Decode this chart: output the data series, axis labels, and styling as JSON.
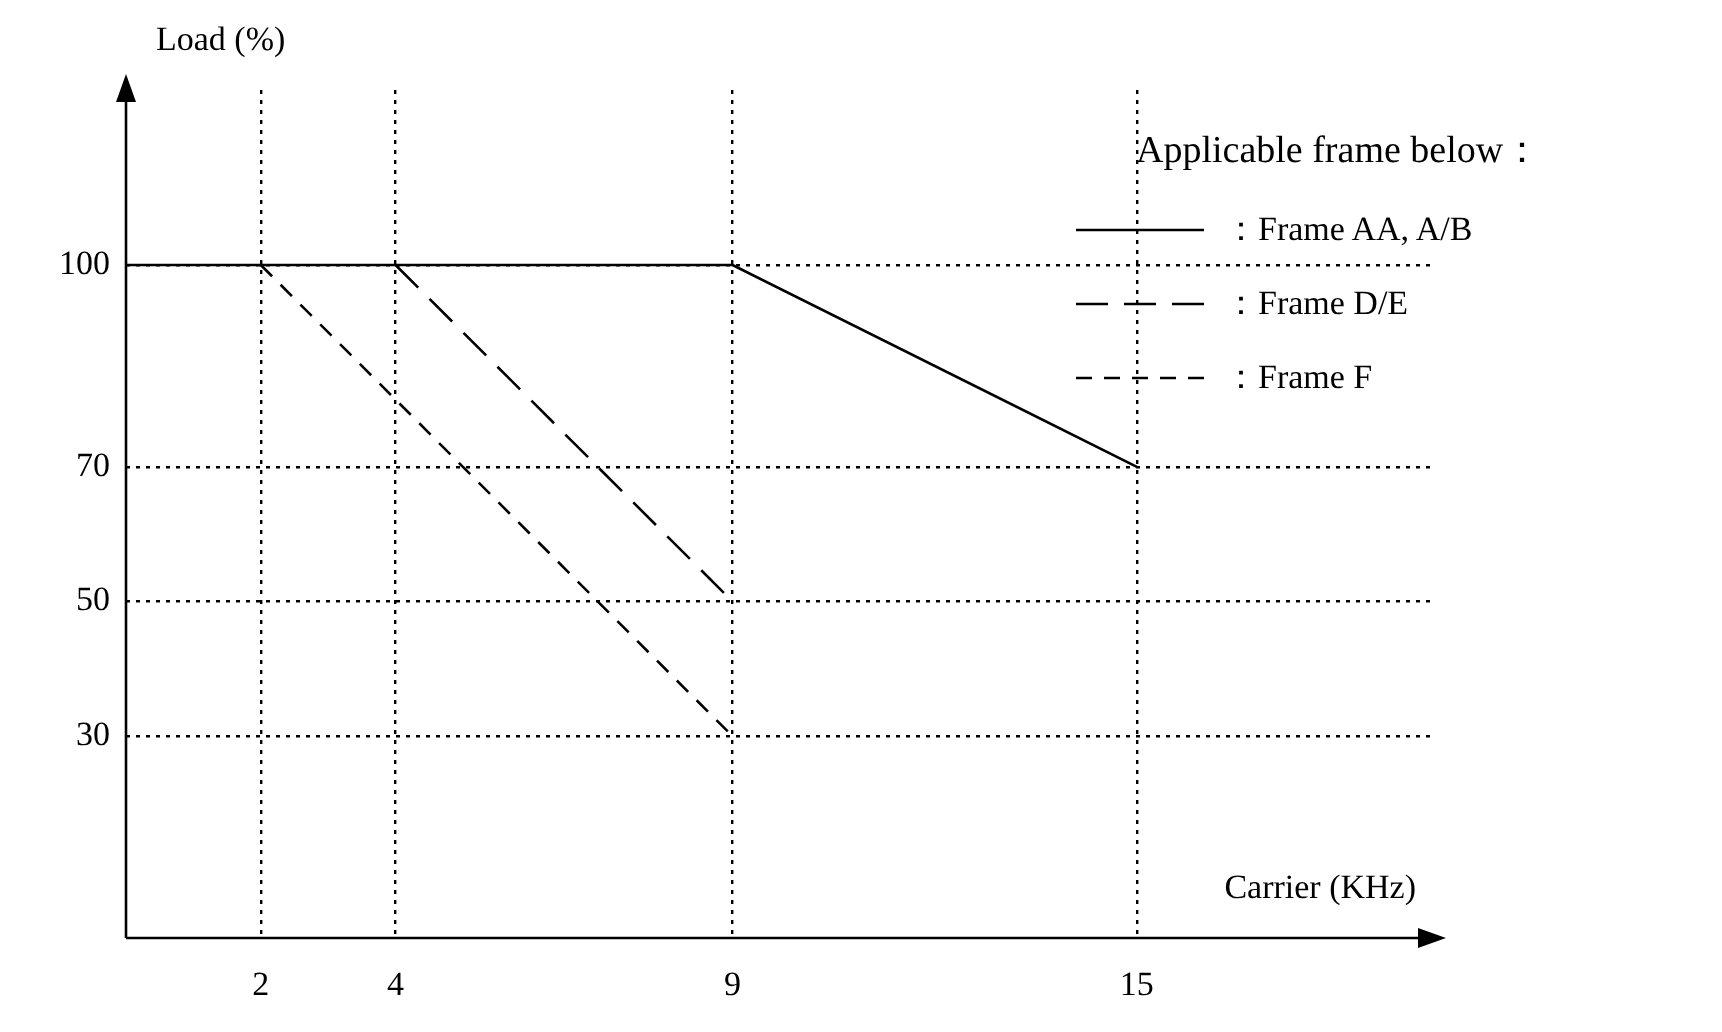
{
  "chart_data": {
    "type": "line",
    "xlabel": "Carrier (KHz)",
    "ylabel": "Load (%)",
    "legend_title": "Applicable frame below：",
    "legend": "top right",
    "grid": true,
    "marker": "none",
    "xlim": [
      0,
      19.35
    ],
    "ylim": [
      0,
      126
    ],
    "xticks": [
      2,
      4,
      9,
      15
    ],
    "yticks": [
      30,
      50,
      70,
      100
    ],
    "series": [
      {
        "name": "：Frame AA, A/B",
        "color": "#000000",
        "line_style": "solid",
        "x": [
          0,
          9,
          15
        ],
        "values": [
          100,
          100,
          70
        ]
      },
      {
        "name": "：Frame D/E",
        "color": "#000000",
        "line_style": "dashed",
        "x": [
          4,
          9
        ],
        "values": [
          100,
          50
        ]
      },
      {
        "name": "：Frame F",
        "color": "#000000",
        "line_style": "dashed",
        "x": [
          2,
          9
        ],
        "values": [
          100,
          30
        ]
      }
    ]
  }
}
